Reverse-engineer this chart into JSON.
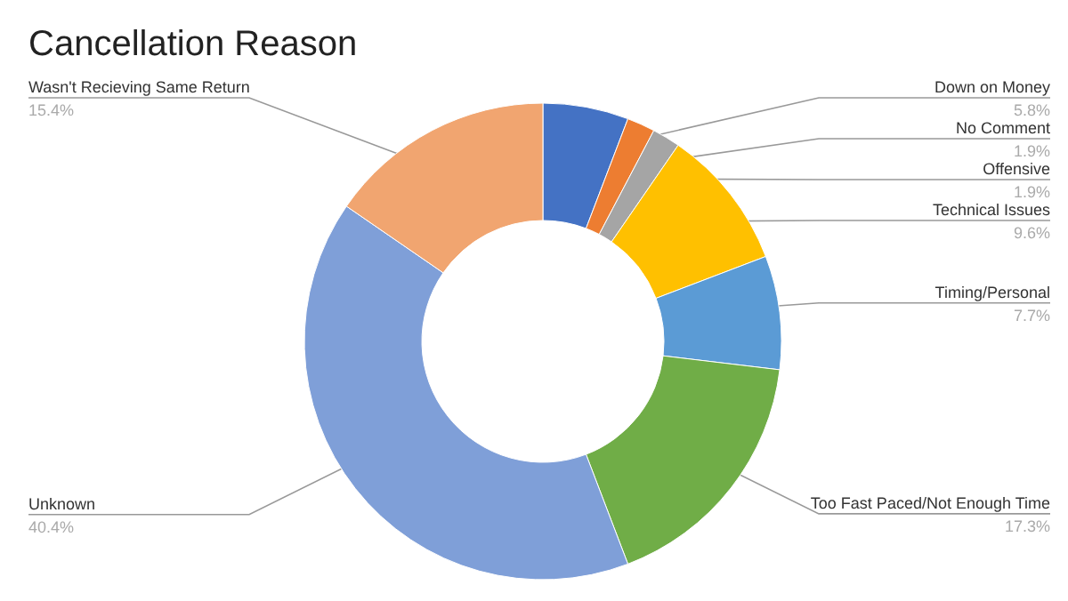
{
  "chart_data": {
    "type": "donut",
    "title": "Cancellation Reason",
    "categories": [
      "Down on Money",
      "No Comment",
      "Offensive",
      "Technical Issues",
      "Timing/Personal",
      "Too Fast Paced/Not Enough Time",
      "Unknown",
      "Wasn't Recieving Same Return"
    ],
    "values": [
      5.8,
      1.9,
      1.9,
      9.6,
      7.7,
      17.3,
      40.4,
      15.4
    ],
    "value_labels": [
      "5.8%",
      "1.9%",
      "1.9%",
      "9.6%",
      "7.7%",
      "17.3%",
      "40.4%",
      "15.4%"
    ],
    "colors": [
      "#4472c4",
      "#ed7d31",
      "#a5a5a5",
      "#ffc000",
      "#5b9bd5",
      "#70ad47",
      "#7f9fd8",
      "#f1a570"
    ]
  }
}
